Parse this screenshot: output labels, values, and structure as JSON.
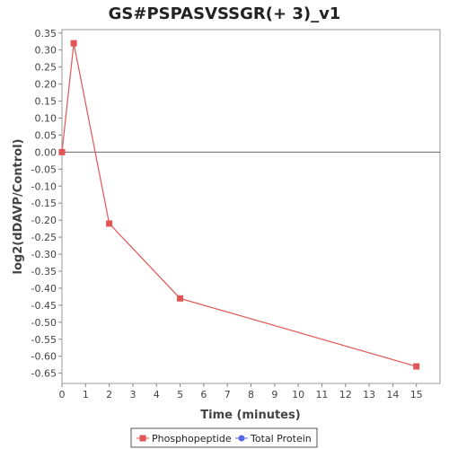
{
  "chart_data": {
    "type": "line",
    "title": "GS#PSPASVSSGR(+ 3)_v1",
    "xlabel": "Time (minutes)",
    "ylabel": "log2(dDAVP/Control)",
    "xlim": [
      0,
      16
    ],
    "ylim": [
      -0.68,
      0.36
    ],
    "x_ticks": [
      0,
      1,
      2,
      3,
      4,
      5,
      6,
      7,
      8,
      9,
      10,
      11,
      12,
      13,
      14,
      15
    ],
    "y_ticks": [
      0.35,
      0.3,
      0.25,
      0.2,
      0.15,
      0.1,
      0.05,
      0.0,
      -0.05,
      -0.1,
      -0.15,
      -0.2,
      -0.25,
      -0.3,
      -0.35,
      -0.4,
      -0.45,
      -0.5,
      -0.55,
      -0.6,
      -0.65
    ],
    "x_tick_labels": [
      "0",
      "1",
      "2",
      "3",
      "4",
      "5",
      "6",
      "7",
      "8",
      "9",
      "10",
      "11",
      "12",
      "13",
      "14",
      "15"
    ],
    "y_tick_labels": [
      "0.35",
      "0.30",
      "0.25",
      "0.20",
      "0.15",
      "0.10",
      "0.05",
      "0.00",
      "-0.05",
      "-0.10",
      "-0.15",
      "-0.20",
      "-0.25",
      "-0.30",
      "-0.35",
      "-0.40",
      "-0.45",
      "-0.50",
      "-0.55",
      "-0.60",
      "-0.65"
    ],
    "zero_line": true,
    "grid": false,
    "legend_position": "bottom-center",
    "series": [
      {
        "name": "Phosphopeptide",
        "color": "#e05555",
        "marker": "square",
        "x": [
          0,
          0.5,
          2,
          5,
          15
        ],
        "y": [
          0.0,
          0.32,
          -0.21,
          -0.43,
          -0.63
        ]
      },
      {
        "name": "Total Protein",
        "color": "#5566e8",
        "marker": "circle",
        "x": [],
        "y": []
      }
    ]
  }
}
